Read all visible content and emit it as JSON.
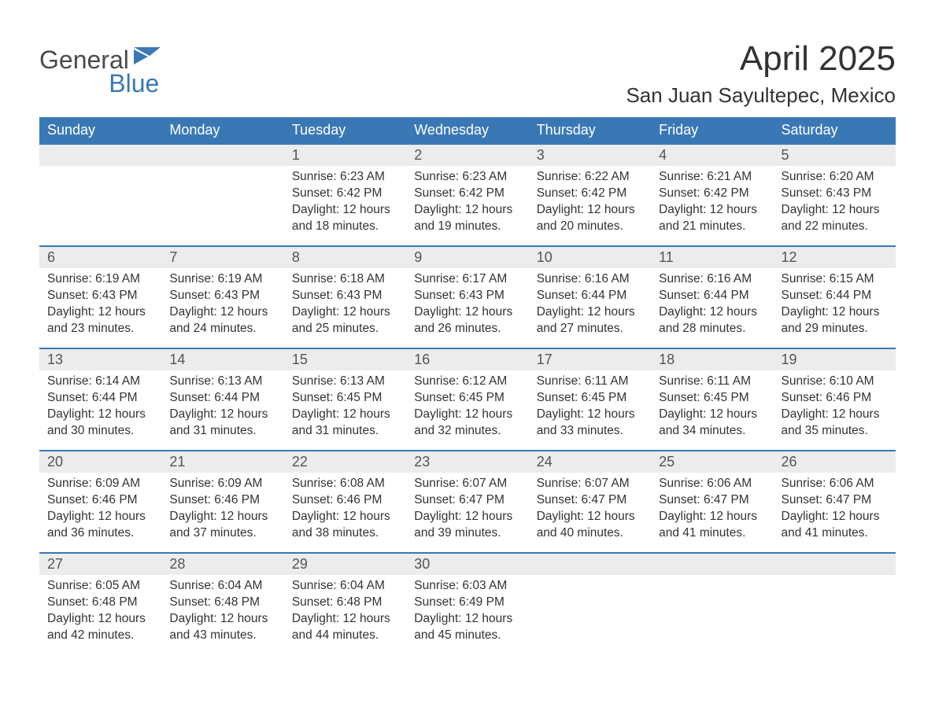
{
  "brand": {
    "general": "General",
    "blue": "Blue"
  },
  "title": "April 2025",
  "location": "San Juan Sayultepec, Mexico",
  "colors": {
    "header_bg": "#3a78b5",
    "header_text": "#ffffff",
    "daynum_bg": "#ececec",
    "text": "#333333",
    "row_border": "#3a78b5",
    "logo_gray": "#4a4a4a",
    "logo_blue": "#3a78b5",
    "page_bg": "#ffffff"
  },
  "columns": [
    "Sunday",
    "Monday",
    "Tuesday",
    "Wednesday",
    "Thursday",
    "Friday",
    "Saturday"
  ],
  "weeks": [
    [
      null,
      null,
      {
        "n": "1",
        "sr": "Sunrise: 6:23 AM",
        "ss": "Sunset: 6:42 PM",
        "d1": "Daylight: 12 hours",
        "d2": "and 18 minutes."
      },
      {
        "n": "2",
        "sr": "Sunrise: 6:23 AM",
        "ss": "Sunset: 6:42 PM",
        "d1": "Daylight: 12 hours",
        "d2": "and 19 minutes."
      },
      {
        "n": "3",
        "sr": "Sunrise: 6:22 AM",
        "ss": "Sunset: 6:42 PM",
        "d1": "Daylight: 12 hours",
        "d2": "and 20 minutes."
      },
      {
        "n": "4",
        "sr": "Sunrise: 6:21 AM",
        "ss": "Sunset: 6:42 PM",
        "d1": "Daylight: 12 hours",
        "d2": "and 21 minutes."
      },
      {
        "n": "5",
        "sr": "Sunrise: 6:20 AM",
        "ss": "Sunset: 6:43 PM",
        "d1": "Daylight: 12 hours",
        "d2": "and 22 minutes."
      }
    ],
    [
      {
        "n": "6",
        "sr": "Sunrise: 6:19 AM",
        "ss": "Sunset: 6:43 PM",
        "d1": "Daylight: 12 hours",
        "d2": "and 23 minutes."
      },
      {
        "n": "7",
        "sr": "Sunrise: 6:19 AM",
        "ss": "Sunset: 6:43 PM",
        "d1": "Daylight: 12 hours",
        "d2": "and 24 minutes."
      },
      {
        "n": "8",
        "sr": "Sunrise: 6:18 AM",
        "ss": "Sunset: 6:43 PM",
        "d1": "Daylight: 12 hours",
        "d2": "and 25 minutes."
      },
      {
        "n": "9",
        "sr": "Sunrise: 6:17 AM",
        "ss": "Sunset: 6:43 PM",
        "d1": "Daylight: 12 hours",
        "d2": "and 26 minutes."
      },
      {
        "n": "10",
        "sr": "Sunrise: 6:16 AM",
        "ss": "Sunset: 6:44 PM",
        "d1": "Daylight: 12 hours",
        "d2": "and 27 minutes."
      },
      {
        "n": "11",
        "sr": "Sunrise: 6:16 AM",
        "ss": "Sunset: 6:44 PM",
        "d1": "Daylight: 12 hours",
        "d2": "and 28 minutes."
      },
      {
        "n": "12",
        "sr": "Sunrise: 6:15 AM",
        "ss": "Sunset: 6:44 PM",
        "d1": "Daylight: 12 hours",
        "d2": "and 29 minutes."
      }
    ],
    [
      {
        "n": "13",
        "sr": "Sunrise: 6:14 AM",
        "ss": "Sunset: 6:44 PM",
        "d1": "Daylight: 12 hours",
        "d2": "and 30 minutes."
      },
      {
        "n": "14",
        "sr": "Sunrise: 6:13 AM",
        "ss": "Sunset: 6:44 PM",
        "d1": "Daylight: 12 hours",
        "d2": "and 31 minutes."
      },
      {
        "n": "15",
        "sr": "Sunrise: 6:13 AM",
        "ss": "Sunset: 6:45 PM",
        "d1": "Daylight: 12 hours",
        "d2": "and 31 minutes."
      },
      {
        "n": "16",
        "sr": "Sunrise: 6:12 AM",
        "ss": "Sunset: 6:45 PM",
        "d1": "Daylight: 12 hours",
        "d2": "and 32 minutes."
      },
      {
        "n": "17",
        "sr": "Sunrise: 6:11 AM",
        "ss": "Sunset: 6:45 PM",
        "d1": "Daylight: 12 hours",
        "d2": "and 33 minutes."
      },
      {
        "n": "18",
        "sr": "Sunrise: 6:11 AM",
        "ss": "Sunset: 6:45 PM",
        "d1": "Daylight: 12 hours",
        "d2": "and 34 minutes."
      },
      {
        "n": "19",
        "sr": "Sunrise: 6:10 AM",
        "ss": "Sunset: 6:46 PM",
        "d1": "Daylight: 12 hours",
        "d2": "and 35 minutes."
      }
    ],
    [
      {
        "n": "20",
        "sr": "Sunrise: 6:09 AM",
        "ss": "Sunset: 6:46 PM",
        "d1": "Daylight: 12 hours",
        "d2": "and 36 minutes."
      },
      {
        "n": "21",
        "sr": "Sunrise: 6:09 AM",
        "ss": "Sunset: 6:46 PM",
        "d1": "Daylight: 12 hours",
        "d2": "and 37 minutes."
      },
      {
        "n": "22",
        "sr": "Sunrise: 6:08 AM",
        "ss": "Sunset: 6:46 PM",
        "d1": "Daylight: 12 hours",
        "d2": "and 38 minutes."
      },
      {
        "n": "23",
        "sr": "Sunrise: 6:07 AM",
        "ss": "Sunset: 6:47 PM",
        "d1": "Daylight: 12 hours",
        "d2": "and 39 minutes."
      },
      {
        "n": "24",
        "sr": "Sunrise: 6:07 AM",
        "ss": "Sunset: 6:47 PM",
        "d1": "Daylight: 12 hours",
        "d2": "and 40 minutes."
      },
      {
        "n": "25",
        "sr": "Sunrise: 6:06 AM",
        "ss": "Sunset: 6:47 PM",
        "d1": "Daylight: 12 hours",
        "d2": "and 41 minutes."
      },
      {
        "n": "26",
        "sr": "Sunrise: 6:06 AM",
        "ss": "Sunset: 6:47 PM",
        "d1": "Daylight: 12 hours",
        "d2": "and 41 minutes."
      }
    ],
    [
      {
        "n": "27",
        "sr": "Sunrise: 6:05 AM",
        "ss": "Sunset: 6:48 PM",
        "d1": "Daylight: 12 hours",
        "d2": "and 42 minutes."
      },
      {
        "n": "28",
        "sr": "Sunrise: 6:04 AM",
        "ss": "Sunset: 6:48 PM",
        "d1": "Daylight: 12 hours",
        "d2": "and 43 minutes."
      },
      {
        "n": "29",
        "sr": "Sunrise: 6:04 AM",
        "ss": "Sunset: 6:48 PM",
        "d1": "Daylight: 12 hours",
        "d2": "and 44 minutes."
      },
      {
        "n": "30",
        "sr": "Sunrise: 6:03 AM",
        "ss": "Sunset: 6:49 PM",
        "d1": "Daylight: 12 hours",
        "d2": "and 45 minutes."
      },
      null,
      null,
      null
    ]
  ]
}
